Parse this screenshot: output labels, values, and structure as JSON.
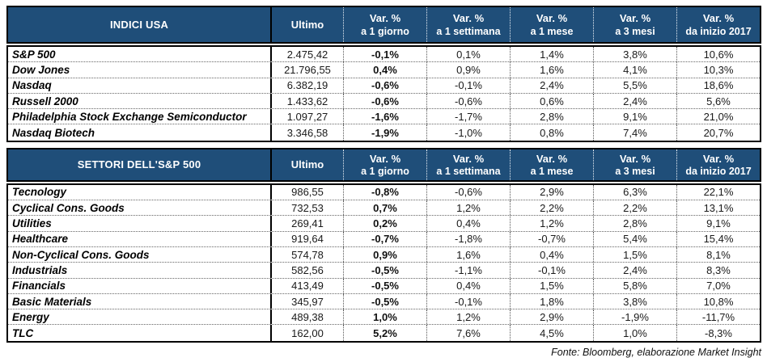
{
  "colors": {
    "header_bg": "#1F4E79",
    "header_text": "#FFFFFF",
    "body_text": "#1A1A1A",
    "border": "#000000"
  },
  "value_columns": [
    {
      "line1": "Ultimo",
      "line2": ""
    },
    {
      "line1": "Var. %",
      "line2": "a 1 giorno"
    },
    {
      "line1": "Var. %",
      "line2": "a 1 settimana"
    },
    {
      "line1": "Var. %",
      "line2": "a 1 mese"
    },
    {
      "line1": "Var. %",
      "line2": "a 3 mesi"
    },
    {
      "line1": "Var. %",
      "line2": "da inizio 2017"
    }
  ],
  "tables": [
    {
      "title": "INDICI USA",
      "rows": [
        {
          "name": "S&P 500",
          "values": [
            "2.475,42",
            "-0,1%",
            "0,1%",
            "1,4%",
            "3,8%",
            "10,6%"
          ]
        },
        {
          "name": "Dow Jones",
          "values": [
            "21.796,55",
            "0,4%",
            "0,9%",
            "1,6%",
            "4,1%",
            "10,3%"
          ]
        },
        {
          "name": "Nasdaq",
          "values": [
            "6.382,19",
            "-0,6%",
            "-0,1%",
            "2,4%",
            "5,5%",
            "18,6%"
          ]
        },
        {
          "name": "Russell 2000",
          "values": [
            "1.433,62",
            "-0,6%",
            "-0,6%",
            "0,6%",
            "2,4%",
            "5,6%"
          ]
        },
        {
          "name": "Philadelphia Stock Exchange Semiconductor",
          "values": [
            "1.097,27",
            "-1,6%",
            "-1,7%",
            "2,8%",
            "9,1%",
            "21,0%"
          ]
        },
        {
          "name": "Nasdaq Biotech",
          "values": [
            "3.346,58",
            "-1,9%",
            "-1,0%",
            "0,8%",
            "7,4%",
            "20,7%"
          ]
        }
      ]
    },
    {
      "title": "SETTORI DELL'S&P 500",
      "rows": [
        {
          "name": "Tecnology",
          "values": [
            "986,55",
            "-0,8%",
            "-0,6%",
            "2,9%",
            "6,3%",
            "22,1%"
          ]
        },
        {
          "name": "Cyclical Cons. Goods",
          "values": [
            "732,53",
            "0,7%",
            "1,2%",
            "2,2%",
            "2,2%",
            "13,1%"
          ]
        },
        {
          "name": "Utilities",
          "values": [
            "269,41",
            "0,2%",
            "0,4%",
            "1,2%",
            "2,8%",
            "9,1%"
          ]
        },
        {
          "name": "Healthcare",
          "values": [
            "919,64",
            "-0,7%",
            "-1,8%",
            "-0,7%",
            "5,4%",
            "15,4%"
          ]
        },
        {
          "name": "Non-Cyclical Cons. Goods",
          "values": [
            "574,78",
            "0,9%",
            "1,6%",
            "0,4%",
            "1,5%",
            "8,1%"
          ]
        },
        {
          "name": "Industrials",
          "values": [
            "582,56",
            "-0,5%",
            "-1,1%",
            "-0,1%",
            "2,4%",
            "8,3%"
          ]
        },
        {
          "name": "Financials",
          "values": [
            "413,49",
            "-0,5%",
            "0,4%",
            "1,5%",
            "5,8%",
            "7,0%"
          ]
        },
        {
          "name": "Basic Materials",
          "values": [
            "345,97",
            "-0,5%",
            "-0,1%",
            "1,8%",
            "3,8%",
            "10,8%"
          ]
        },
        {
          "name": "Energy",
          "values": [
            "489,38",
            "1,0%",
            "1,2%",
            "2,9%",
            "-1,9%",
            "-11,7%"
          ]
        },
        {
          "name": "TLC",
          "values": [
            "162,00",
            "5,2%",
            "7,6%",
            "4,5%",
            "1,0%",
            "-8,3%"
          ]
        }
      ]
    }
  ],
  "footer": "Fonte: Bloomberg, elaborazione Market Insight"
}
